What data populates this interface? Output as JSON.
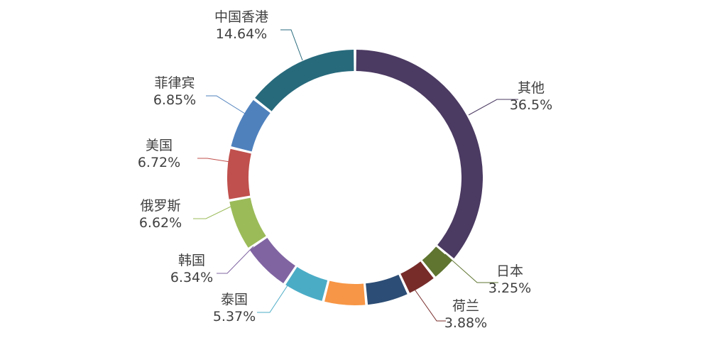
{
  "chart_data": {
    "type": "pie",
    "variant": "donut",
    "title": "",
    "legend": "none",
    "slices": [
      {
        "name": "其他",
        "value": 36.5,
        "label": "36.5%",
        "color": "#4b3a62"
      },
      {
        "name": "日本",
        "value": 3.25,
        "label": "3.25%",
        "color": "#5f7530"
      },
      {
        "name": "荷兰",
        "value": 3.88,
        "label": "3.88%",
        "color": "#772c2a"
      },
      {
        "name": "",
        "value": 5.5,
        "label": "",
        "color": "#2c4d75"
      },
      {
        "name": "",
        "value": 5.5,
        "label": "",
        "color": "#f79646"
      },
      {
        "name": "泰国",
        "value": 5.37,
        "label": "5.37%",
        "color": "#4bacc6"
      },
      {
        "name": "韩国",
        "value": 6.34,
        "label": "6.34%",
        "color": "#8064a2"
      },
      {
        "name": "俄罗斯",
        "value": 6.62,
        "label": "6.62%",
        "color": "#9bbb59"
      },
      {
        "name": "美国",
        "value": 6.72,
        "label": "6.72%",
        "color": "#c0504d"
      },
      {
        "name": "菲律宾",
        "value": 6.85,
        "label": "6.85%",
        "color": "#4f81bd"
      },
      {
        "name": "中国香港",
        "value": 14.64,
        "label": "14.64%",
        "color": "#276a7c"
      }
    ]
  }
}
